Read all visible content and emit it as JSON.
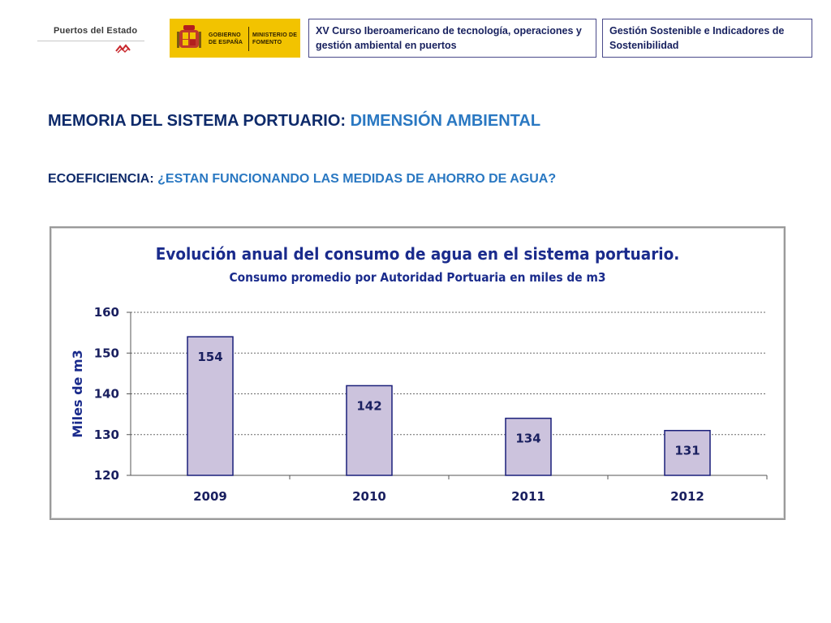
{
  "header": {
    "puertos_logo_text": "Puertos del Estado",
    "gobierno_text": "GOBIERNO DE ESPAÑA",
    "ministerio_text": "MINISTERIO DE FOMENTO",
    "course_box": "XV Curso Iberoamericano de tecnología, operaciones y gestión ambiental en puertos",
    "topic_box": "Gestión Sostenible e Indicadores de Sostenibilidad"
  },
  "page": {
    "title_main": "MEMORIA DEL SISTEMA PORTUARIO: ",
    "title_accent": "DIMENSIÓN AMBIENTAL",
    "subtitle_main": "ECOEFICIENCIA: ",
    "subtitle_accent": "¿ESTAN FUNCIONANDO LAS MEDIDAS DE AHORRO DE AGUA?"
  },
  "colors": {
    "bar_fill": "#ccc3dd",
    "bar_stroke": "#1a1f7a",
    "accent": "#2a78c2",
    "navy": "#0e2a6a"
  },
  "chart_data": {
    "type": "bar",
    "title": "Evolución anual del consumo de agua en el sistema portuario.",
    "subtitle": "Consumo promedio por Autoridad Portuaria en miles de m3",
    "xlabel": "",
    "ylabel": "Miles de m3",
    "categories": [
      "2009",
      "2010",
      "2011",
      "2012"
    ],
    "values": [
      154,
      142,
      134,
      131
    ],
    "value_labels": [
      "154",
      "142",
      "134",
      "131"
    ],
    "ylim": [
      120,
      160
    ],
    "yticks": [
      120,
      130,
      140,
      150,
      160
    ],
    "ytick_labels": [
      "120",
      "130",
      "140",
      "150",
      "160"
    ],
    "grid": "horizontal dashed",
    "legend": "none"
  }
}
